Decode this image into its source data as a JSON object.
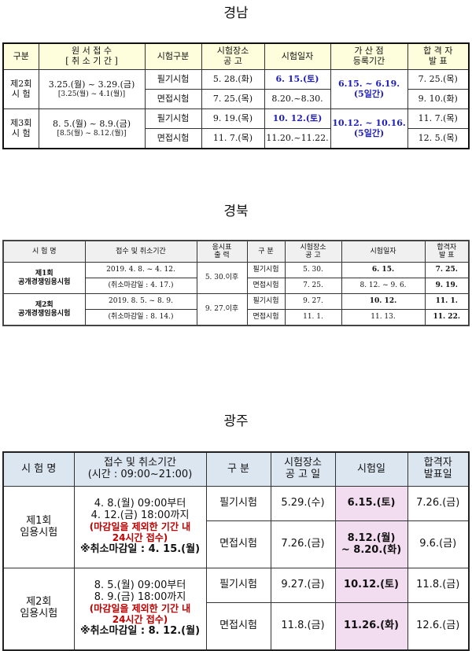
{
  "sections": {
    "gyeongnam": {
      "title": "경남",
      "headers": {
        "category": "구분",
        "application_1": "원 서 접 수",
        "application_2": "[ 취 소 기 간 ]",
        "exam_type": "시험구분",
        "venue_notice_1": "시험장소",
        "venue_notice_2": "공 고",
        "exam_date": "시험일자",
        "bonus_1": "가 산 점",
        "bonus_2": "등록기간",
        "result_1": "합 격 자",
        "result_2": "발 표"
      },
      "rounds": [
        {
          "name_1": "제2회",
          "name_2": "시 험",
          "application": "3.25.(월) ~ 3.29.(금)",
          "cancel": "[3.25(월) ~ 4.1(월)]",
          "bonus_1": "6.15. ~ 6.19.",
          "bonus_2": "(5일간)",
          "rows": [
            {
              "type": "필기시험",
              "venue": "5. 28.(화)",
              "date": "6. 15.(토)",
              "result": "7. 25.(목)"
            },
            {
              "type": "면접시험",
              "venue": "7. 25.(목)",
              "date": "8.20.~8.30.",
              "result": "9. 10.(화)"
            }
          ]
        },
        {
          "name_1": "제3회",
          "name_2": "시 험",
          "application": "8. 5.(월) ~ 8.9.(금)",
          "cancel": "[8.5(월) ~ 8.12.(월)]",
          "bonus_1": "10.12. ~ 10.16.",
          "bonus_2": "(5일간)",
          "rows": [
            {
              "type": "필기시험",
              "venue": "9. 19.(목)",
              "date": "10. 12.(토)",
              "result": "11. 7.(목)"
            },
            {
              "type": "면접시험",
              "venue": "11. 7.(목)",
              "date": "11.20.~11.22.",
              "result": "12. 5.(목)"
            }
          ]
        }
      ]
    },
    "gyeongbuk": {
      "title": "경북",
      "headers": {
        "exam_name": "시 험 명",
        "application": "접수 및 취소기간",
        "ticket_1": "응시표",
        "ticket_2": "출 력",
        "category": "구 분",
        "venue_1": "시험장소",
        "venue_2": "공 고",
        "exam_date": "시험일자",
        "result_1": "합격자",
        "result_2": "발 표"
      },
      "rounds": [
        {
          "name_1": "제1회",
          "name_2": "공개경쟁임용시험",
          "application": "2019. 4. 8. ~ 4. 12.",
          "cancel": "(취소마감일 : 4. 17.)",
          "ticket": "5. 30.이후",
          "rows": [
            {
              "type": "필기시험",
              "venue": "5. 30.",
              "date": "6. 15.",
              "result": "7. 25."
            },
            {
              "type": "면접시험",
              "venue": "7. 25.",
              "date": "8. 12. ~ 9. 6.",
              "result": "9. 19."
            }
          ]
        },
        {
          "name_1": "제2회",
          "name_2": "공개경쟁임용시험",
          "application": "2019. 8. 5. ~ 8. 9.",
          "cancel": "(취소마감일 : 8. 14.)",
          "ticket": "9. 27.이후",
          "rows": [
            {
              "type": "필기시험",
              "venue": "9. 27.",
              "date": "10. 12.",
              "result": "11. 1."
            },
            {
              "type": "면접시험",
              "venue": "11. 1.",
              "date": "11. 13.",
              "result": "11. 22."
            }
          ]
        }
      ]
    },
    "gwangju": {
      "title": "광주",
      "headers": {
        "exam_name": "시 험 명",
        "application_1": "접수 및 취소기간",
        "application_2": "(시간 : 09:00~21:00)",
        "category": "구 분",
        "venue_1": "시험장소",
        "venue_2": "공 고 일",
        "exam_date": "시험일",
        "result_1": "합격자",
        "result_2": "발표일"
      },
      "rounds": [
        {
          "name_1": "제1회",
          "name_2": "임용시험",
          "app_1": "4. 8.(월) 09:00부터",
          "app_2": "4. 12.(금) 18:00까지",
          "note_1": "(마감일을 제외한 기간 내",
          "note_2": "24시간 접수)",
          "cancel": "※취소마감일 : 4. 15.(월)",
          "rows": [
            {
              "type": "필기시험",
              "venue": "5.29.(수)",
              "date_1": "6.15.(토)",
              "date_2": "",
              "result": "7.26.(금)"
            },
            {
              "type": "면접시험",
              "venue": "7.26.(금)",
              "date_1": "8.12.(월)",
              "date_2": "~ 8.20.(화)",
              "result": "9.6.(금)"
            }
          ]
        },
        {
          "name_1": "제2회",
          "name_2": "임용시험",
          "app_1": "8. 5.(월) 09:00부터",
          "app_2": "8. 9.(금) 18:00까지",
          "note_1": "(마감일을 제외한 기간 내",
          "note_2": "24시간 접수)",
          "cancel": "※취소마감일 : 8. 12.(월)",
          "rows": [
            {
              "type": "필기시험",
              "venue": "9.27.(금)",
              "date_1": "10.12.(토)",
              "date_2": "",
              "result": "11.8.(금)"
            },
            {
              "type": "면접시험",
              "venue": "11.8.(금)",
              "date_1": "11.26.(화)",
              "date_2": "",
              "result": "12.6.(금)"
            }
          ]
        }
      ]
    }
  },
  "colors": {
    "gyeongnam_header_bg": "#fefedc",
    "gyeongnam_highlight_text": "#1f1fb8",
    "gyeongbuk_header_bg": "#f0f0f0",
    "gwangju_header_bg": "#dce6f1",
    "gwangju_exam_date_bg": "#f2dcf0",
    "gwangju_note_text": "#c00000"
  }
}
